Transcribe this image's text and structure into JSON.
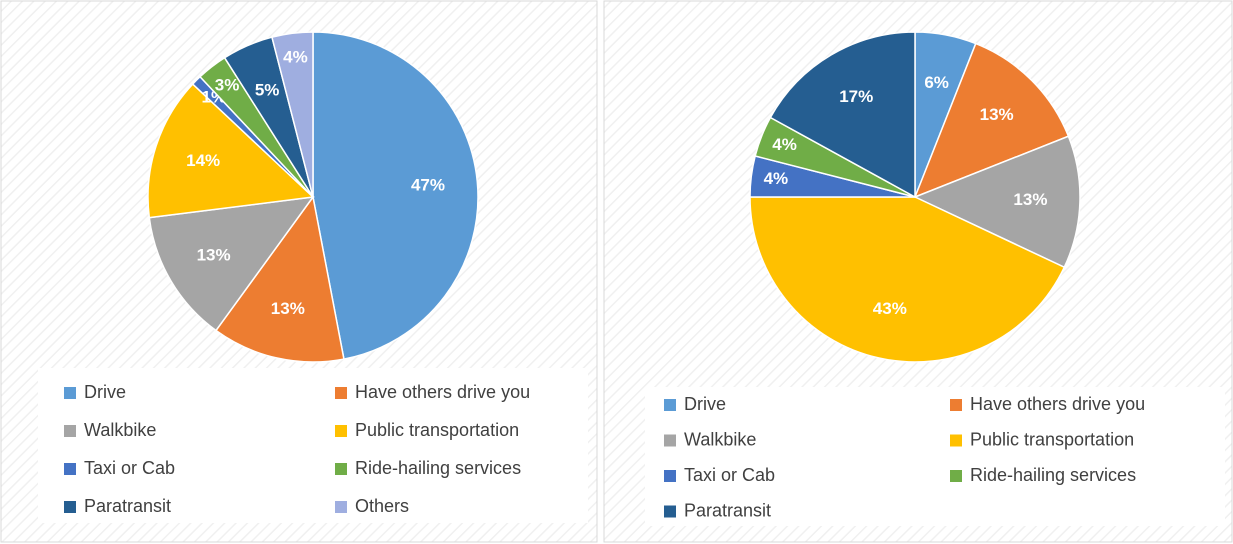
{
  "chart_data": [
    {
      "type": "pie",
      "categories": [
        "Drive",
        "Have others drive you",
        "Walkbike",
        "Public transportation",
        "Taxi or Cab",
        "Ride-hailing services",
        "Paratransit",
        "Others"
      ],
      "values": [
        47,
        13,
        13,
        14,
        1,
        3,
        5,
        4
      ],
      "value_labels": [
        "47%",
        "13%",
        "13%",
        "14%",
        "1%",
        "3%",
        "5%",
        "4%"
      ],
      "colors": [
        "#5b9bd5",
        "#ed7d31",
        "#a5a5a5",
        "#ffc000",
        "#4472c4",
        "#70ad47",
        "#255e91",
        "#9faee0"
      ],
      "legend": "bottom"
    },
    {
      "type": "pie",
      "categories": [
        "Drive",
        "Have others drive you",
        "Walkbike",
        "Public transportation",
        "Taxi or Cab",
        "Ride-hailing services",
        "Paratransit"
      ],
      "values": [
        6,
        13,
        13,
        43,
        4,
        4,
        17
      ],
      "value_labels": [
        "6%",
        "13%",
        "13%",
        "43%",
        "4%",
        "4%",
        "17%"
      ],
      "colors": [
        "#5b9bd5",
        "#ed7d31",
        "#a5a5a5",
        "#ffc000",
        "#4472c4",
        "#70ad47",
        "#255e91"
      ],
      "legend": "bottom"
    }
  ]
}
